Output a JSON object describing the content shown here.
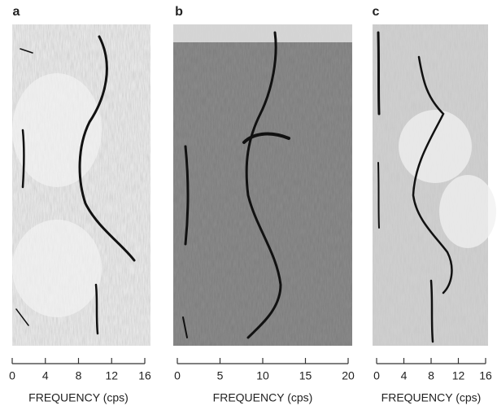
{
  "chart_data": [
    {
      "type": "spectrogram",
      "panel_label": "a",
      "xlabel": "FREQUENCY (cps)",
      "xlim": [
        0,
        16
      ],
      "xticks": [
        0,
        4,
        8,
        12,
        16
      ]
    },
    {
      "type": "spectrogram",
      "panel_label": "b",
      "xlabel": "FREQUENCY (cps)",
      "xlim": [
        0,
        20
      ],
      "xticks": [
        0,
        5,
        10,
        15,
        20
      ]
    },
    {
      "type": "spectrogram",
      "panel_label": "c",
      "xlabel": "FREQUENCY (cps)",
      "xlim": [
        0,
        16
      ],
      "xticks": [
        0,
        4,
        8,
        12,
        16
      ]
    }
  ]
}
